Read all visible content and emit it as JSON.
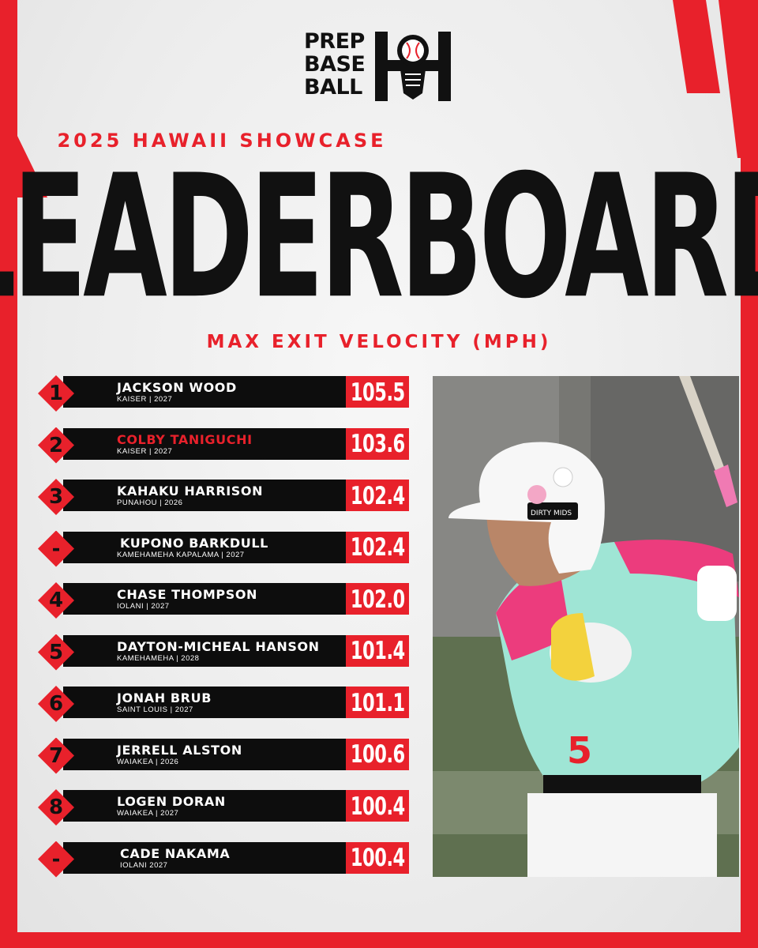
{
  "brand": {
    "logo_lines": [
      "PREP",
      "BASE",
      "BALL"
    ],
    "accent_color": "#e8212b",
    "dark_color": "#111111"
  },
  "event_title": "2025 HAWAII SHOWCASE",
  "headline": "LEADERBOARD",
  "subtitle": "MAX EXIT VELOCITY (MPH)",
  "leaderboard": [
    {
      "rank": "1",
      "name": "JACKSON WOOD",
      "school": "KAISER | 2027",
      "velocity": "105.5",
      "name_color": "white"
    },
    {
      "rank": "2",
      "name": "COLBY TANIGUCHI",
      "school": "KAISER | 2027",
      "velocity": "103.6",
      "name_color": "red"
    },
    {
      "rank": "3",
      "name": "KAHAKU HARRISON",
      "school": "PUNAHOU | 2026",
      "velocity": "102.4",
      "name_color": "white"
    },
    {
      "rank": "-",
      "name": "KUPONO BARKDULL",
      "school": "KAMEHAMEHA KAPALAMA | 2027",
      "velocity": "102.4",
      "name_color": "white"
    },
    {
      "rank": "4",
      "name": "CHASE THOMPSON",
      "school": "IOLANI | 2027",
      "velocity": "102.0",
      "name_color": "white"
    },
    {
      "rank": "5",
      "name": "DAYTON-MICHEAL HANSON",
      "school": "KAMEHAMEHA | 2028",
      "velocity": "101.4",
      "name_color": "white"
    },
    {
      "rank": "6",
      "name": "JONAH BRUB",
      "school": "SAINT LOUIS | 2027",
      "velocity": "101.1",
      "name_color": "white"
    },
    {
      "rank": "7",
      "name": "JERRELL ALSTON",
      "school": "WAIAKEA | 2026",
      "velocity": "100.6",
      "name_color": "white"
    },
    {
      "rank": "8",
      "name": "LOGEN DORAN",
      "school": "WAIAKEA | 2027",
      "velocity": "100.4",
      "name_color": "white"
    },
    {
      "rank": "-",
      "name": "CADE NAKAMA",
      "school": "IOLANI 2027",
      "velocity": "100.4",
      "name_color": "white"
    }
  ],
  "photo": {
    "jersey_number": "5",
    "helmet_sticker": "DIRTY MIDS"
  }
}
